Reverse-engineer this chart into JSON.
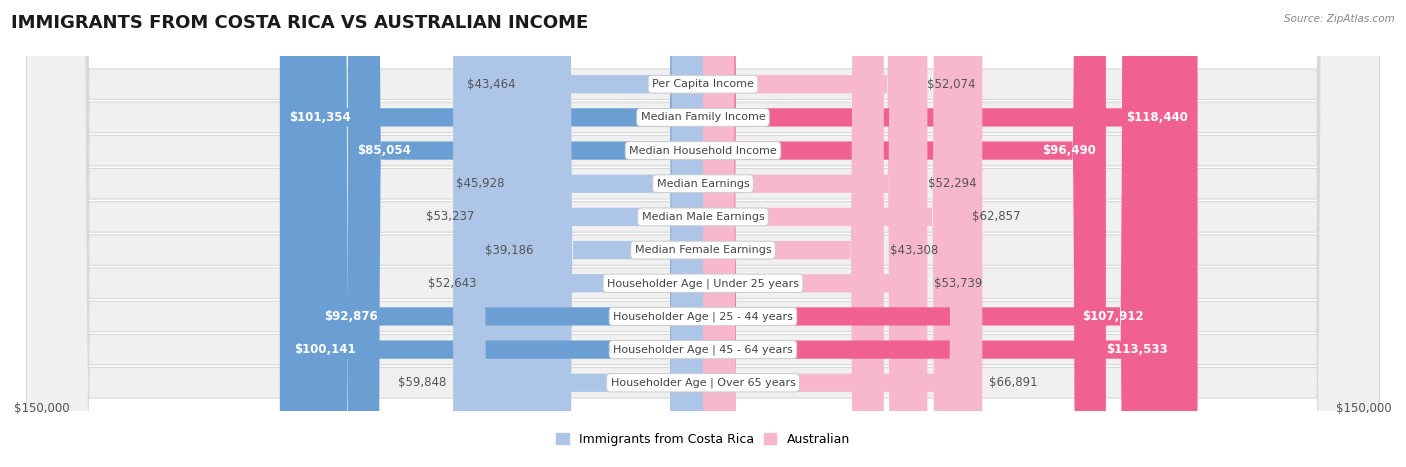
{
  "title": "IMMIGRANTS FROM COSTA RICA VS AUSTRALIAN INCOME",
  "source": "Source: ZipAtlas.com",
  "categories": [
    "Per Capita Income",
    "Median Family Income",
    "Median Household Income",
    "Median Earnings",
    "Median Male Earnings",
    "Median Female Earnings",
    "Householder Age | Under 25 years",
    "Householder Age | 25 - 44 years",
    "Householder Age | 45 - 64 years",
    "Householder Age | Over 65 years"
  ],
  "costa_rica_values": [
    43464,
    101354,
    85054,
    45928,
    53237,
    39186,
    52643,
    92876,
    100141,
    59848
  ],
  "australian_values": [
    52074,
    118440,
    96490,
    52294,
    62857,
    43308,
    53739,
    107912,
    113533,
    66891
  ],
  "costa_rica_labels": [
    "$43,464",
    "$101,354",
    "$85,054",
    "$45,928",
    "$53,237",
    "$39,186",
    "$52,643",
    "$92,876",
    "$100,141",
    "$59,848"
  ],
  "australian_labels": [
    "$52,074",
    "$118,440",
    "$96,490",
    "$52,294",
    "$62,857",
    "$43,308",
    "$53,739",
    "$107,912",
    "$113,533",
    "$66,891"
  ],
  "costa_rica_color_light": "#adc6e8",
  "costa_rica_color_dark": "#6b9fd4",
  "australian_color_light": "#f7b8ce",
  "australian_color_dark": "#f06090",
  "max_value": 150000,
  "bg_color": "#ffffff",
  "row_bg_color": "#f0f0f0",
  "row_border_color": "#d8d8d8",
  "label_color_white": "#ffffff",
  "label_color_dark": "#555555",
  "title_fontsize": 13,
  "label_fontsize": 8.5,
  "category_fontsize": 8.0,
  "axis_label_fontsize": 8.5,
  "legend_fontsize": 9,
  "inside_threshold": 0.52
}
